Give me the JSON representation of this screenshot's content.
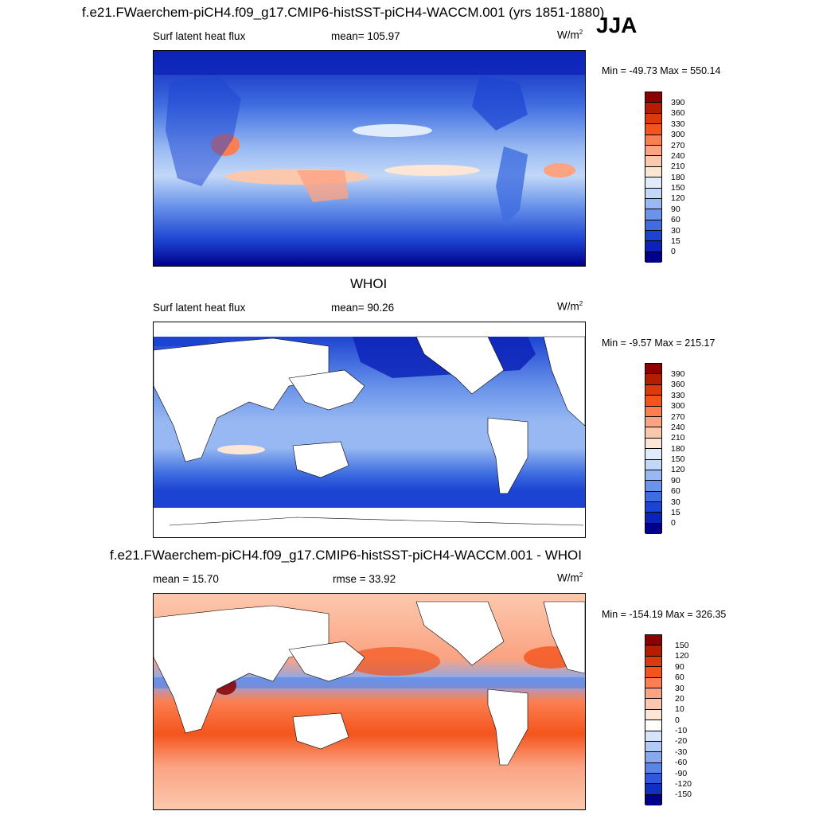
{
  "season": "JJA",
  "panel1": {
    "title": "f.e21.FWaerchem-piCH4.f09_g17.CMIP6-histSST-piCH4-WACCM.001 (yrs 1851-1880)",
    "left_label": "Surf latent heat flux",
    "mean_label": "mean= 105.97",
    "units": "W/m",
    "units_exp": "2",
    "minmax": "Min = -49.73 Max = 550.14"
  },
  "panel2": {
    "title": "WHOI",
    "left_label": "Surf latent heat flux",
    "mean_label": "mean=  90.26",
    "units": "W/m",
    "units_exp": "2",
    "minmax": "Min =  -9.57 Max = 215.17"
  },
  "panel3": {
    "title": "f.e21.FWaerchem-piCH4.f09_g17.CMIP6-histSST-piCH4-WACCM.001 - WHOI",
    "left_label": "mean =  15.70",
    "mean_label": "rmse =  33.92",
    "units": "W/m",
    "units_exp": "2",
    "minmax": "Min = -154.19 Max = 326.35"
  },
  "chart_data": [
    {
      "type": "heatmap",
      "title": "f.e21.FWaerchem-piCH4.f09_g17.CMIP6-histSST-piCH4-WACCM.001 (yrs 1851-1880)",
      "variable": "Surf latent heat flux",
      "units": "W/m2",
      "mean": 105.97,
      "min": -49.73,
      "max": 550.14,
      "colorbar_levels": [
        "390",
        "360",
        "330",
        "300",
        "270",
        "240",
        "210",
        "180",
        "150",
        "120",
        "90",
        "60",
        "30",
        "15",
        "0"
      ]
    },
    {
      "type": "heatmap",
      "title": "WHOI",
      "variable": "Surf latent heat flux",
      "units": "W/m2",
      "mean": 90.26,
      "min": -9.57,
      "max": 215.17,
      "colorbar_levels": [
        "390",
        "360",
        "330",
        "300",
        "270",
        "240",
        "210",
        "180",
        "150",
        "120",
        "90",
        "60",
        "30",
        "15",
        "0"
      ]
    },
    {
      "type": "heatmap",
      "title": "f.e21.FWaerchem-piCH4.f09_g17.CMIP6-histSST-piCH4-WACCM.001 - WHOI",
      "units": "W/m2",
      "mean": 15.7,
      "rmse": 33.92,
      "min": -154.19,
      "max": 326.35,
      "colorbar_levels": [
        "150",
        "120",
        "90",
        "60",
        "30",
        "20",
        "10",
        "0",
        "-10",
        "-20",
        "-30",
        "-60",
        "-90",
        "-120",
        "-150"
      ]
    }
  ],
  "colors": {
    "abs_scale": [
      "#8b0000",
      "#b31e00",
      "#dc3a0a",
      "#f4541c",
      "#fc7f52",
      "#fba382",
      "#fcc8ad",
      "#fde6d6",
      "#e0ecfb",
      "#c2d8f8",
      "#97b8f2",
      "#6a94ea",
      "#3e6de0",
      "#1c44d2",
      "#0c23b8",
      "#00008b"
    ],
    "diff_scale": [
      "#8b0000",
      "#b31e00",
      "#dc3a0a",
      "#f4541c",
      "#fc7f52",
      "#fba382",
      "#fcc8ad",
      "#fde6d6",
      "#ffffff",
      "#d6e4fa",
      "#b0cbf4",
      "#86a9ee",
      "#5a84e5",
      "#2f58da",
      "#1030c2",
      "#00008b"
    ],
    "land": "#ffffff"
  }
}
